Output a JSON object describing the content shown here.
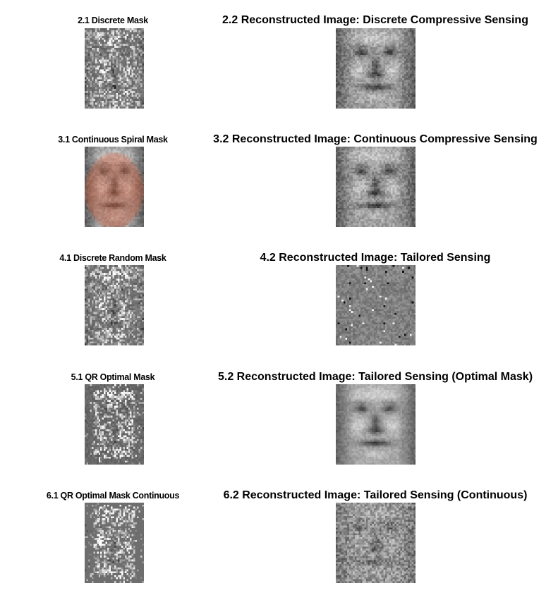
{
  "panels": [
    {
      "id": "2",
      "mask_title": "2.1 Discrete Mask",
      "mask_kind": "discrete",
      "recon_title": "2.2 Reconstructed Image: Discrete Compressive Sensing",
      "recon_kind": "smooth"
    },
    {
      "id": "3",
      "mask_title": "3.1 Continuous Spiral Mask",
      "mask_kind": "spiral",
      "recon_title": "3.2 Reconstructed Image: Continuous Compressive Sensing",
      "recon_kind": "smooth"
    },
    {
      "id": "4",
      "mask_title": "4.1 Discrete Random Mask",
      "mask_kind": "discrete",
      "recon_title": "4.2 Reconstructed Image: Tailored Sensing",
      "recon_kind": "noise"
    },
    {
      "id": "5",
      "mask_title": "5.1 QR Optimal Mask",
      "mask_kind": "qr",
      "recon_title": "5.2 Reconstructed Image: Tailored Sensing (Optimal Mask)",
      "recon_kind": "clear"
    },
    {
      "id": "6",
      "mask_title": "6.1 QR Optimal Mask Continuous",
      "mask_kind": "qr-continuous",
      "recon_title": "6.2 Reconstructed Image: Tailored Sensing (Continuous)",
      "recon_kind": "texture"
    }
  ],
  "colors": {
    "background": "#ffffff",
    "text": "#000000",
    "spiral_overlay": "#d2603c",
    "mask_gray": "#6e6e6e"
  }
}
